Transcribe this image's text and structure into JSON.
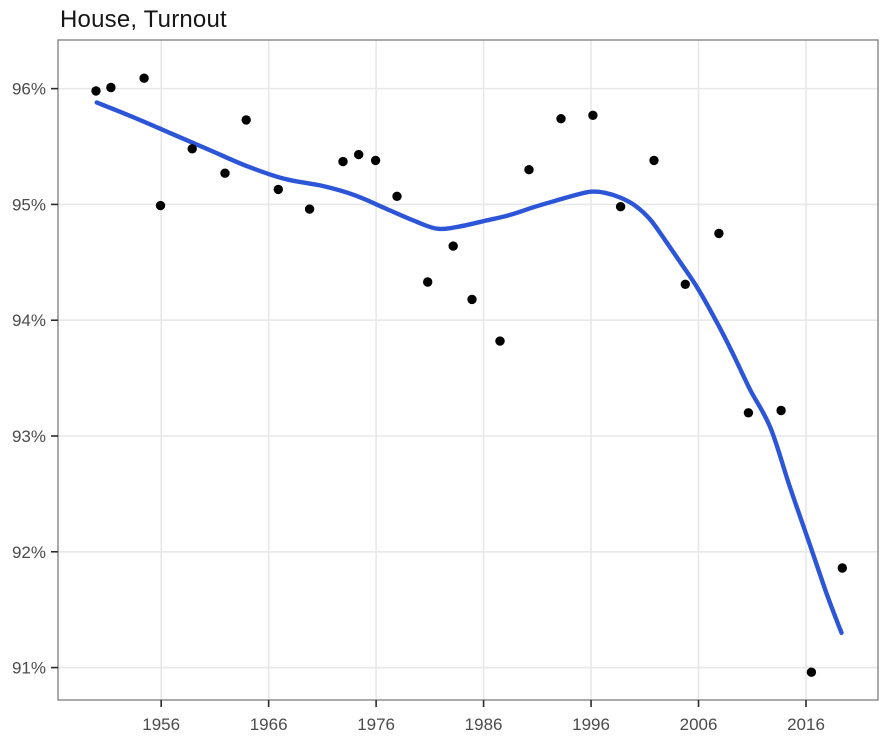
{
  "chart_data": {
    "type": "scatter",
    "title": "House, Turnout",
    "grid": true,
    "legend": false,
    "x_axis": {
      "label": "",
      "range": [
        1946.4,
        2022.7
      ],
      "ticks": [
        1956,
        1966,
        1976,
        1986,
        1996,
        2006,
        2016
      ]
    },
    "y_axis": {
      "label": "",
      "range": [
        90.72,
        96.42
      ],
      "ticks": [
        {
          "value": 96,
          "label": "96%"
        },
        {
          "value": 95,
          "label": "95%"
        },
        {
          "value": 94,
          "label": "94%"
        },
        {
          "value": 93,
          "label": "93%"
        },
        {
          "value": 92,
          "label": "92%"
        },
        {
          "value": 91,
          "label": "91%"
        }
      ]
    },
    "series": [
      {
        "name": "election-turnout-points",
        "kind": "points",
        "color": "#000000",
        "marker_radius": 4.7,
        "points": [
          {
            "year": 1949,
            "x": 1949.94,
            "turnout": 95.98
          },
          {
            "year": 1951,
            "x": 1951.32,
            "turnout": 96.01
          },
          {
            "year": 1954,
            "x": 1954.41,
            "turnout": 96.09
          },
          {
            "year": 1955,
            "x": 1955.94,
            "turnout": 94.99
          },
          {
            "year": 1958,
            "x": 1958.89,
            "turnout": 95.48
          },
          {
            "year": 1961,
            "x": 1961.94,
            "turnout": 95.27
          },
          {
            "year": 1963,
            "x": 1963.91,
            "turnout": 95.73
          },
          {
            "year": 1966,
            "x": 1966.9,
            "turnout": 95.13
          },
          {
            "year": 1969,
            "x": 1969.81,
            "turnout": 94.96
          },
          {
            "year": 1972,
            "x": 1972.92,
            "turnout": 95.37
          },
          {
            "year": 1974,
            "x": 1974.38,
            "turnout": 95.43
          },
          {
            "year": 1975,
            "x": 1975.95,
            "turnout": 95.38
          },
          {
            "year": 1977,
            "x": 1977.94,
            "turnout": 95.07
          },
          {
            "year": 1980,
            "x": 1980.8,
            "turnout": 94.33
          },
          {
            "year": 1983,
            "x": 1983.17,
            "turnout": 94.64
          },
          {
            "year": 1984,
            "x": 1984.92,
            "turnout": 94.18
          },
          {
            "year": 1987,
            "x": 1987.53,
            "turnout": 93.82
          },
          {
            "year": 1990,
            "x": 1990.23,
            "turnout": 95.3
          },
          {
            "year": 1993,
            "x": 1993.2,
            "turnout": 95.74
          },
          {
            "year": 1996,
            "x": 1996.17,
            "turnout": 95.77
          },
          {
            "year": 1998,
            "x": 1998.75,
            "turnout": 94.98
          },
          {
            "year": 2001,
            "x": 2001.86,
            "turnout": 95.38
          },
          {
            "year": 2004,
            "x": 2004.77,
            "turnout": 94.31
          },
          {
            "year": 2007,
            "x": 2007.9,
            "turnout": 94.75
          },
          {
            "year": 2010,
            "x": 2010.64,
            "turnout": 93.2
          },
          {
            "year": 2013,
            "x": 2013.68,
            "turnout": 93.22
          },
          {
            "year": 2016,
            "x": 2016.5,
            "turnout": 90.96
          },
          {
            "year": 2019,
            "x": 2019.38,
            "turnout": 91.86
          }
        ]
      },
      {
        "name": "smoothed-trend",
        "kind": "smooth-line",
        "color": "#2d55d7",
        "stroke_width": 4.4,
        "points": [
          [
            1950.0,
            95.88
          ],
          [
            1953.5,
            95.75
          ],
          [
            1957.0,
            95.61
          ],
          [
            1960.5,
            95.47
          ],
          [
            1964.0,
            95.33
          ],
          [
            1967.5,
            95.22
          ],
          [
            1971.0,
            95.16
          ],
          [
            1974.0,
            95.08
          ],
          [
            1977.0,
            94.96
          ],
          [
            1979.5,
            94.86
          ],
          [
            1981.7,
            94.79
          ],
          [
            1983.8,
            94.81
          ],
          [
            1986.2,
            94.86
          ],
          [
            1988.5,
            94.91
          ],
          [
            1990.8,
            94.98
          ],
          [
            1993.0,
            95.04
          ],
          [
            1994.5,
            95.08
          ],
          [
            1996.0,
            95.11
          ],
          [
            1997.3,
            95.1
          ],
          [
            1998.7,
            95.06
          ],
          [
            2000.1,
            94.99
          ],
          [
            2001.5,
            94.87
          ],
          [
            2002.9,
            94.69
          ],
          [
            2004.3,
            94.5
          ],
          [
            2005.9,
            94.28
          ],
          [
            2007.6,
            94.0
          ],
          [
            2009.1,
            93.73
          ],
          [
            2010.8,
            93.4
          ],
          [
            2012.7,
            93.07
          ],
          [
            2014.5,
            92.56
          ],
          [
            2016.4,
            92.05
          ],
          [
            2017.8,
            91.67
          ],
          [
            2018.8,
            91.42
          ],
          [
            2019.3,
            91.3
          ]
        ]
      }
    ],
    "colors": {
      "background": "#ffffff",
      "panel_background": "#ffffff",
      "gridline": "#e8e8e8",
      "panel_border": "#858585",
      "tick_mark": "#2b2b2b",
      "tick_label": "#4c4c4c",
      "title": "#161616",
      "point": "#000000",
      "trend": "#2d55d7"
    }
  }
}
